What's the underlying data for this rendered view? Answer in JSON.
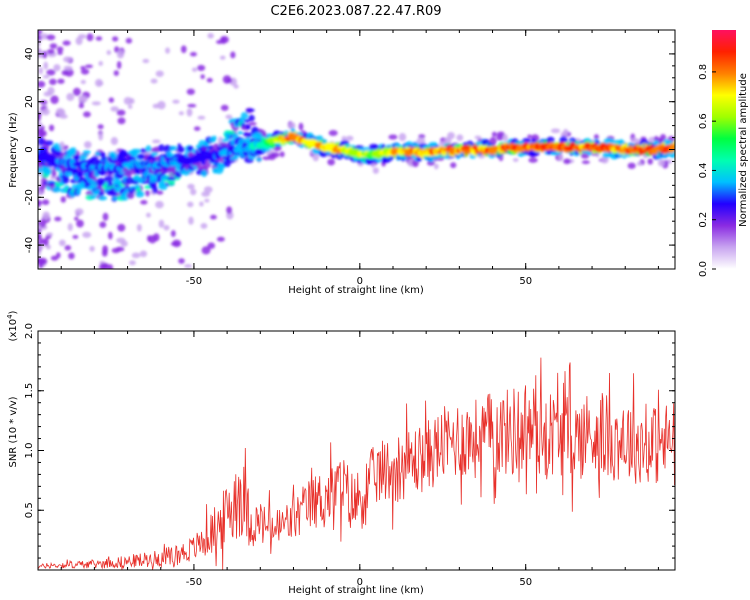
{
  "title": "C2E6.2023.087.22.47.R09",
  "chart_data": [
    {
      "type": "heatmap",
      "xlabel": "Height of straight line (km)",
      "ylabel": "Frequency (Hz)",
      "xlim": [
        -97,
        95
      ],
      "ylim": [
        -50,
        50
      ],
      "xticks": [
        -50,
        0,
        50
      ],
      "xtick_labels": [
        "-50",
        "0",
        "50"
      ],
      "yticks": [
        -40,
        -20,
        0,
        20,
        40
      ],
      "ytick_labels": [
        "-40",
        "-20",
        "0",
        "20",
        "40"
      ],
      "grid": false,
      "colorbar": {
        "label": "Normalized spectral amplitude",
        "range": [
          0,
          0.97
        ],
        "ticks": [
          0.0,
          0.2,
          0.4,
          0.6,
          0.8
        ],
        "tick_labels": [
          "0.0",
          "0.2",
          "0.4",
          "0.6",
          "0.8"
        ],
        "colormap": [
          "#ffffff",
          "#c8a4f0",
          "#8a2be2",
          "#2200ff",
          "#00c0ff",
          "#00ffb0",
          "#00ff40",
          "#a0ff00",
          "#ffff00",
          "#ff8000",
          "#ff2000",
          "#ff1060"
        ]
      },
      "ridge": {
        "x": [
          -97,
          -90,
          -80,
          -70,
          -60,
          -50,
          -40,
          -35,
          -30,
          -25,
          -20,
          -15,
          -10,
          -5,
          0,
          5,
          10,
          20,
          30,
          40,
          50,
          60,
          70,
          80,
          90,
          95
        ],
        "freq": [
          -3,
          -5,
          -8,
          -7,
          -6,
          -4,
          -1,
          1,
          2,
          4,
          5,
          3,
          1,
          0,
          -2,
          -2,
          -1,
          -1,
          0,
          0,
          1,
          1,
          1,
          0,
          0,
          1
        ],
        "peak_amplitude": [
          0.3,
          0.35,
          0.35,
          0.35,
          0.35,
          0.3,
          0.35,
          0.35,
          0.5,
          0.75,
          0.95,
          0.85,
          0.9,
          0.8,
          0.7,
          0.7,
          0.85,
          0.9,
          0.9,
          0.95,
          0.95,
          0.95,
          0.95,
          0.95,
          0.95,
          0.9
        ]
      },
      "secondary_branches": [
        {
          "x": [
            -95,
            -85,
            -75,
            -65,
            -55
          ],
          "freq": [
            -12,
            -16,
            -18,
            -15,
            -10
          ],
          "peak_amplitude": 0.45
        },
        {
          "x": [
            -40,
            -35,
            -32
          ],
          "freq": [
            8,
            12,
            14
          ],
          "peak_amplitude": 0.45
        }
      ]
    },
    {
      "type": "line",
      "xlabel": "Height of straight line (km)",
      "ylabel": "SNR (10 * v/v)",
      "y_multiplier": "(x10",
      "y_multiplier_exp": "4",
      "y_multiplier_close": ")",
      "xlim": [
        -97,
        95
      ],
      "ylim": [
        0,
        2.0
      ],
      "xticks": [
        -50,
        0,
        50
      ],
      "xtick_labels": [
        "-50",
        "0",
        "50"
      ],
      "yticks": [
        0.5,
        1.0,
        1.5,
        2.0
      ],
      "ytick_labels": [
        "0.5",
        "1.0",
        "1.5",
        "2.0"
      ],
      "color": "#e8302a",
      "grid": false,
      "series": [
        {
          "x": [
            -97,
            -90,
            -80,
            -70,
            -60,
            -55,
            -50,
            -45,
            -40,
            -37,
            -35,
            -33,
            -30,
            -25,
            -20,
            -15,
            -10,
            -5,
            -2,
            0,
            5,
            10,
            15,
            20,
            25,
            30,
            35,
            40,
            45,
            50,
            55,
            60,
            65,
            70,
            75,
            80,
            85,
            90,
            95
          ],
          "values": [
            0.03,
            0.04,
            0.05,
            0.07,
            0.1,
            0.13,
            0.18,
            0.3,
            0.45,
            0.65,
            0.6,
            0.4,
            0.38,
            0.35,
            0.42,
            0.55,
            0.62,
            0.7,
            0.55,
            0.6,
            0.8,
            0.85,
            0.9,
            0.95,
            1.05,
            1.1,
            1.1,
            1.15,
            1.15,
            1.2,
            1.15,
            1.15,
            1.1,
            1.15,
            1.1,
            1.1,
            1.05,
            1.05,
            1.1
          ],
          "noise_amplitude": [
            0.02,
            0.03,
            0.04,
            0.06,
            0.08,
            0.1,
            0.12,
            0.2,
            0.3,
            0.45,
            0.35,
            0.25,
            0.2,
            0.2,
            0.22,
            0.25,
            0.28,
            0.3,
            0.3,
            0.32,
            0.3,
            0.32,
            0.33,
            0.33,
            0.35,
            0.38,
            0.38,
            0.4,
            0.42,
            0.45,
            0.42,
            0.4,
            0.4,
            0.42,
            0.4,
            0.4,
            0.38,
            0.38,
            0.38
          ]
        }
      ]
    }
  ]
}
